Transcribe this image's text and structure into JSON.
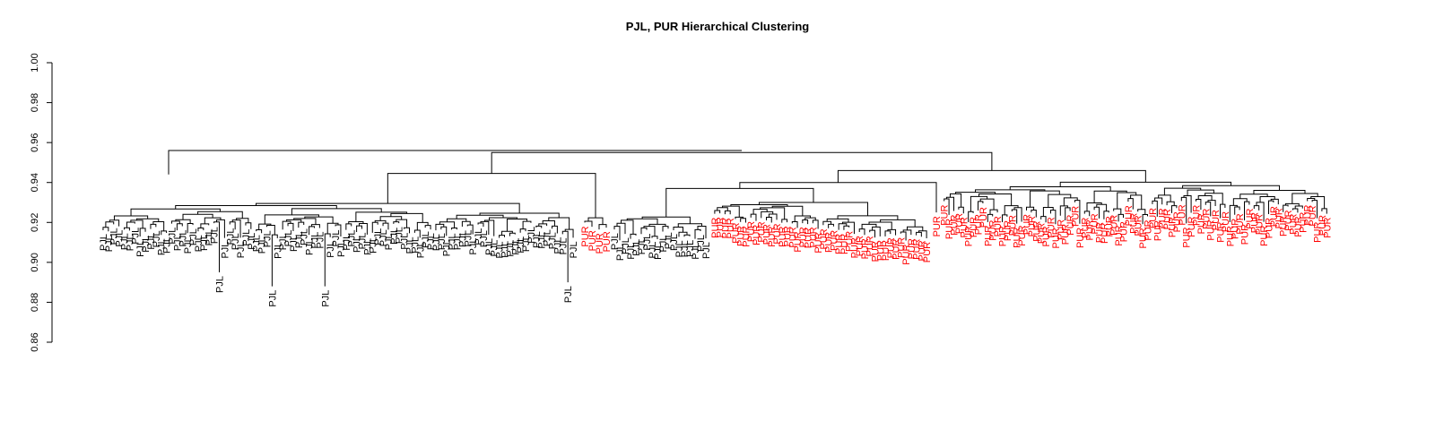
{
  "chart_data": {
    "type": "dendrogram",
    "title": "PJL, PUR Hierarchical Clustering",
    "ylim": [
      0.86,
      1.0
    ],
    "y_ticks": [
      "0.86",
      "0.88",
      "0.90",
      "0.92",
      "0.94",
      "0.96",
      "0.98",
      "1.00"
    ],
    "groups": [
      {
        "label": "PJL",
        "color": "#000000"
      },
      {
        "label": "PUR",
        "color": "#ff0000"
      }
    ],
    "main_merge_heights": [
      0.956,
      0.955,
      0.946,
      0.94,
      0.937
    ]
  }
}
